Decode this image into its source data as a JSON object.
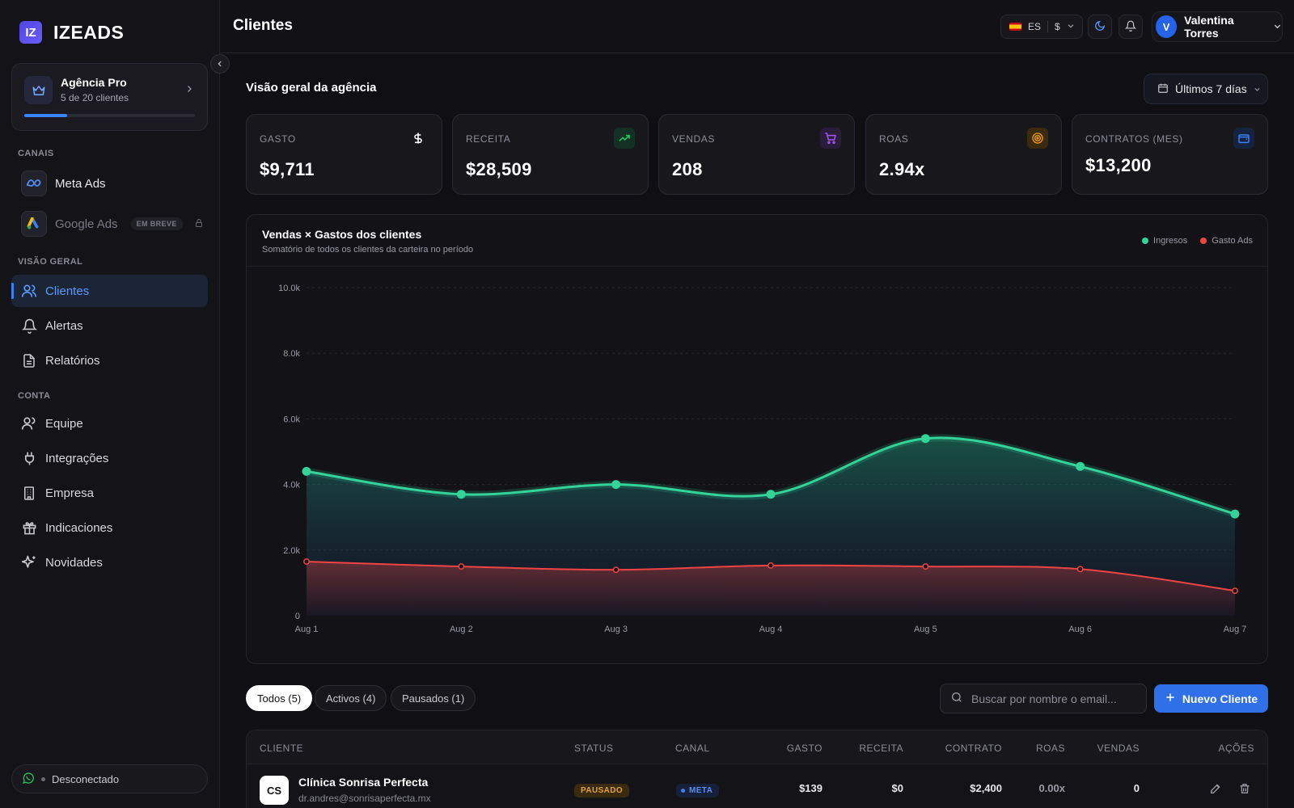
{
  "brand": {
    "logo_mark": "IZ",
    "name": "IZEADS"
  },
  "plan": {
    "name": "Agência Pro",
    "usage": "5 de 20 clientes",
    "used": 5,
    "limit": 20
  },
  "sidebar": {
    "channels_label": "CANAIS",
    "channels": [
      {
        "label": "Meta Ads",
        "icon": "meta-icon"
      },
      {
        "label": "Google Ads",
        "icon": "google-ads-icon",
        "badge": "EM BREVE",
        "locked": true
      }
    ],
    "overview_label": "VISÃO GERAL",
    "overview_items": [
      {
        "label": "Clientes",
        "icon": "users-icon",
        "active": true
      },
      {
        "label": "Alertas",
        "icon": "bell-icon"
      },
      {
        "label": "Relatórios",
        "icon": "file-icon"
      }
    ],
    "account_label": "CONTA",
    "account_items": [
      {
        "label": "Equipe",
        "icon": "team-icon"
      },
      {
        "label": "Integrações",
        "icon": "plug-icon"
      },
      {
        "label": "Empresa",
        "icon": "building-icon"
      },
      {
        "label": "Indicaciones",
        "icon": "gift-icon"
      },
      {
        "label": "Novidades",
        "icon": "sparkles-icon"
      }
    ],
    "whatsapp_status": "Desconectado"
  },
  "topbar": {
    "title": "Clientes",
    "language": "ES",
    "currency": "$",
    "user_initial": "V",
    "user_name": "Valentina Torres"
  },
  "overview": {
    "title": "Visão geral da agência",
    "date_range": "Últimos 7 días"
  },
  "kpis": [
    {
      "label": "GASTO",
      "value": "$9,711",
      "icon": "dollar-icon",
      "color": "#ffffff"
    },
    {
      "label": "RECEITA",
      "value": "$28,509",
      "icon": "trending-up-icon",
      "color": "#22c55e"
    },
    {
      "label": "VENDAS",
      "value": "208",
      "icon": "cart-icon",
      "color": "#a855f7"
    },
    {
      "label": "ROAS",
      "value": "2.94x",
      "icon": "target-icon",
      "color": "#f59e0b"
    },
    {
      "label": "CONTRATOS (MES)",
      "value": "$13,200",
      "icon": "wallet-icon",
      "color": "#3b82f6"
    }
  ],
  "chart": {
    "title": "Vendas × Gastos dos clientes",
    "subtitle": "Somatório de todos os clientes da carteira no período"
  },
  "chart_data": {
    "type": "area",
    "x": [
      "Aug 1",
      "Aug 2",
      "Aug 3",
      "Aug 4",
      "Aug 5",
      "Aug 6",
      "Aug 7"
    ],
    "yticks": [
      "0",
      "2.0k",
      "4.0k",
      "6.0k",
      "8.0k",
      "10.0k"
    ],
    "ylim": [
      0,
      10000
    ],
    "grid": true,
    "legend": "top-right",
    "series": [
      {
        "name": "Ingresos",
        "color": "#34d399",
        "values": [
          4400,
          3700,
          4000,
          3700,
          5400,
          4550,
          3100
        ]
      },
      {
        "name": "Gasto Ads",
        "color": "#ef4444",
        "values": [
          1650,
          1500,
          1400,
          1530,
          1500,
          1420,
          760
        ]
      }
    ]
  },
  "filters": [
    {
      "label": "Todos (5)",
      "active": true
    },
    {
      "label": "Activos (4)"
    },
    {
      "label": "Pausados (1)"
    }
  ],
  "search": {
    "placeholder": "Buscar por nombre o email..."
  },
  "new_client_label": "Nuevo Cliente",
  "table": {
    "headers": [
      "CLIENTE",
      "STATUS",
      "CANAL",
      "GASTO",
      "RECEITA",
      "CONTRATO",
      "ROAS",
      "VENDAS",
      "AÇÕES"
    ],
    "rows": [
      {
        "initials": "CS",
        "name": "Clínica Sonrisa Perfecta",
        "email": "dr.andres@sonrisaperfecta.mx",
        "status": "PAUSADO",
        "channel": "META",
        "gasto": "$139",
        "receita": "$0",
        "contrato": "$2,400",
        "roas": "0.00x",
        "vendas": "0"
      }
    ]
  }
}
